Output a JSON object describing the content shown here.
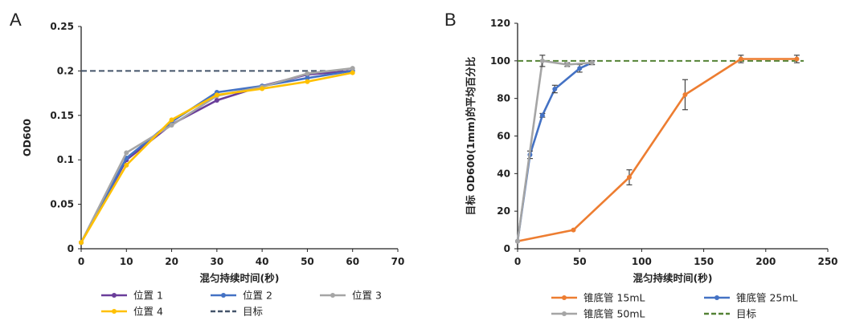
{
  "chart_data": [
    {
      "panel": "A",
      "type": "line",
      "xlabel": "混匀持续时间(秒)",
      "ylabel": "OD600",
      "xlim": [
        0,
        70
      ],
      "ylim": [
        0,
        0.25
      ],
      "x_ticks": [
        0,
        10,
        20,
        30,
        40,
        50,
        60,
        70
      ],
      "x_tick_labels": [
        "0",
        "10",
        "20",
        "30",
        "40",
        "50",
        "60",
        "70"
      ],
      "y_ticks": [
        0,
        0.05,
        0.1,
        0.15,
        0.2,
        0.25
      ],
      "y_tick_labels": [
        "0",
        "0.05",
        "0.1",
        "0.15",
        "0.2",
        "0.25"
      ],
      "grid": false,
      "legend_position": "bottom",
      "x": [
        0,
        10,
        20,
        30,
        40,
        50,
        60
      ],
      "series": [
        {
          "name": "位置 1",
          "color": "#6a3d9a",
          "values": [
            0.007,
            0.1,
            0.14,
            0.167,
            0.183,
            0.196,
            0.2
          ]
        },
        {
          "name": "位置 2",
          "color": "#4472c4",
          "values": [
            0.007,
            0.102,
            0.143,
            0.176,
            0.183,
            0.192,
            0.2
          ]
        },
        {
          "name": "位置 3",
          "color": "#a5a5a5",
          "values": [
            0.007,
            0.108,
            0.139,
            0.172,
            0.182,
            0.197,
            0.203
          ]
        },
        {
          "name": "位置 4",
          "color": "#ffc000",
          "values": [
            0.007,
            0.094,
            0.145,
            0.173,
            0.18,
            0.188,
            0.198
          ]
        }
      ],
      "target": {
        "name": "目标",
        "value": 0.2,
        "color": "#44546a"
      }
    },
    {
      "panel": "B",
      "type": "line",
      "xlabel": "混匀持续时间(秒)",
      "ylabel": "目标 OD600(1mm)的平均百分比",
      "xlim": [
        0,
        250
      ],
      "ylim": [
        0,
        120
      ],
      "x_ticks": [
        0,
        50,
        100,
        150,
        200,
        250
      ],
      "x_tick_labels": [
        "0",
        "50",
        "100",
        "150",
        "200",
        "250"
      ],
      "y_ticks": [
        0,
        20,
        40,
        60,
        80,
        100,
        120
      ],
      "y_tick_labels": [
        "0",
        "20",
        "40",
        "60",
        "80",
        "100",
        "120"
      ],
      "grid": false,
      "legend_position": "bottom",
      "series": [
        {
          "name": "锥底管 15mL",
          "color": "#ed7d31",
          "x": [
            0,
            45,
            90,
            135,
            180,
            225
          ],
          "values": [
            4,
            10,
            38,
            82,
            101,
            101
          ],
          "errors": [
            0,
            0,
            4,
            8,
            2,
            2
          ]
        },
        {
          "name": "锥底管 25mL",
          "color": "#4472c4",
          "x": [
            0,
            10,
            20,
            30,
            50,
            60
          ],
          "values": [
            4,
            50,
            71,
            85,
            96,
            99
          ],
          "errors": [
            0,
            2,
            1,
            2,
            2,
            1
          ]
        },
        {
          "name": "锥底管 50mL",
          "color": "#a5a5a5",
          "x": [
            0,
            20,
            40,
            60
          ],
          "values": [
            4,
            100,
            98,
            99
          ],
          "errors": [
            0,
            3,
            1,
            1
          ]
        }
      ],
      "target": {
        "name": "目标",
        "value": 100,
        "color": "#548235"
      }
    }
  ]
}
